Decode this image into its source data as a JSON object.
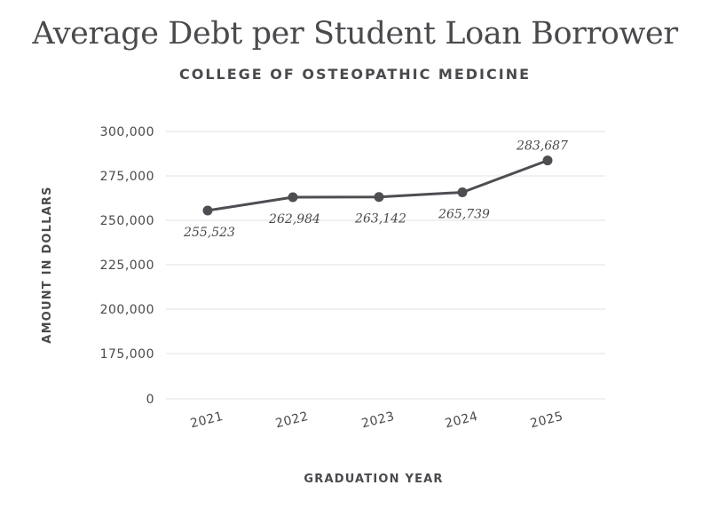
{
  "chart_data": {
    "type": "line",
    "title": "Average Debt per Student Loan Borrower",
    "subtitle": "COLLEGE OF OSTEOPATHIC MEDICINE",
    "xlabel": "GRADUATION YEAR",
    "ylabel": "AMOUNT IN DOLLARS",
    "categories": [
      "2021",
      "2022",
      "2023",
      "2024",
      "2025"
    ],
    "values": [
      255523,
      262984,
      263142,
      265739,
      283687
    ],
    "data_labels": [
      "255,523",
      "262,984",
      "263,142",
      "265,739",
      "283,687"
    ],
    "y_ticks": [
      {
        "label": "300,000",
        "value": 300000
      },
      {
        "label": "275,000",
        "value": 275000
      },
      {
        "label": "250,000",
        "value": 250000
      },
      {
        "label": "225,000",
        "value": 225000
      },
      {
        "label": "200,000",
        "value": 200000
      },
      {
        "label": "175,000",
        "value": 175000
      },
      {
        "label": "0",
        "value": 0
      }
    ],
    "axis_break": "y-axis jumps from 175,000 to 0",
    "ylim": [
      0,
      300000
    ],
    "grid": true,
    "colors": {
      "line": "#4d4d52",
      "grid": "#e2e2e2",
      "text": "#4a4a4e"
    }
  }
}
